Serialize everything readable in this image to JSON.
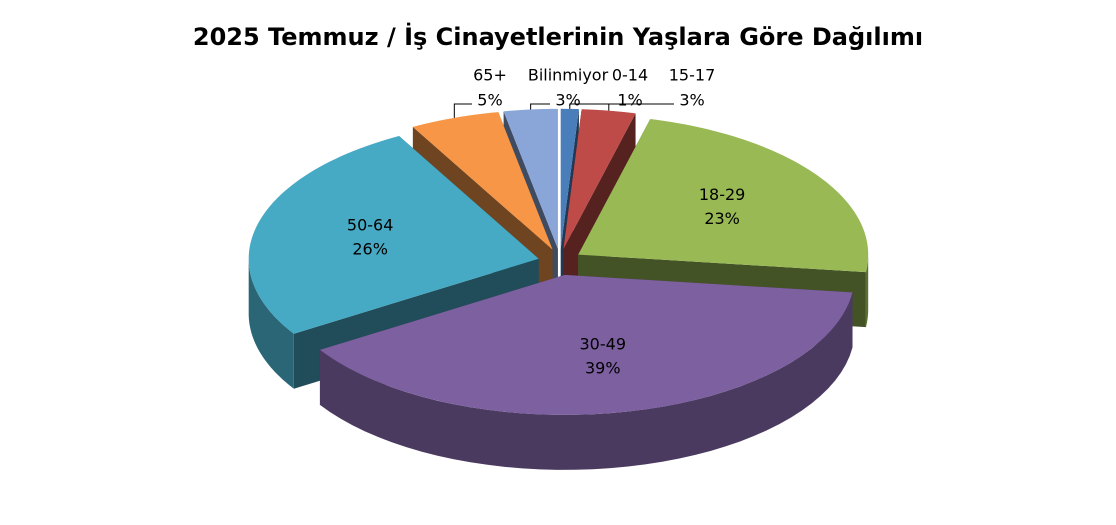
{
  "chart_data": {
    "type": "pie3d",
    "title": "2025 Temmuz / İş Cinayetlerinin Yaşlara Göre Dağılımı",
    "categories": [
      "0-14",
      "15-17",
      "18-29",
      "30-49",
      "50-64",
      "65+",
      "Bilinmiyor"
    ],
    "values": [
      1,
      3,
      23,
      39,
      26,
      5,
      3
    ],
    "value_labels": [
      "1%",
      "3%",
      "23%",
      "39%",
      "26%",
      "5%",
      "3%"
    ],
    "colors": [
      "#4a7ebb",
      "#be4b48",
      "#98b954",
      "#7d60a0",
      "#46aac5",
      "#f79646",
      "#8aa6d8"
    ]
  }
}
